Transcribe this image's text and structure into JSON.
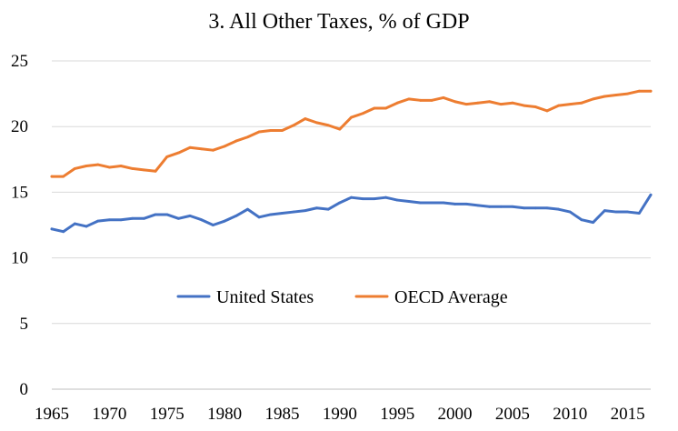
{
  "chart_data": {
    "type": "line",
    "title": "3. All Other Taxes, % of GDP",
    "xlabel": "",
    "ylabel": "",
    "x": [
      1965,
      1966,
      1967,
      1968,
      1969,
      1970,
      1971,
      1972,
      1973,
      1974,
      1975,
      1976,
      1977,
      1978,
      1979,
      1980,
      1981,
      1982,
      1983,
      1984,
      1985,
      1986,
      1987,
      1988,
      1989,
      1990,
      1991,
      1992,
      1993,
      1994,
      1995,
      1996,
      1997,
      1998,
      1999,
      2000,
      2001,
      2002,
      2003,
      2004,
      2005,
      2006,
      2007,
      2008,
      2009,
      2010,
      2011,
      2012,
      2013,
      2014,
      2015,
      2016,
      2017
    ],
    "xlim": [
      1965,
      2017
    ],
    "ylim": [
      0,
      25
    ],
    "y_ticks": [
      0,
      5,
      10,
      15,
      20,
      25
    ],
    "x_ticks": [
      1965,
      1970,
      1975,
      1980,
      1985,
      1990,
      1995,
      2000,
      2005,
      2010,
      2015
    ],
    "grid": true,
    "legend_position": "center",
    "series": [
      {
        "name": "United States",
        "color": "#4472c4",
        "values": [
          12.2,
          12.0,
          12.6,
          12.4,
          12.8,
          12.9,
          12.9,
          13.0,
          13.0,
          13.3,
          13.3,
          13.0,
          13.2,
          12.9,
          12.5,
          12.8,
          13.2,
          13.7,
          13.1,
          13.3,
          13.4,
          13.5,
          13.6,
          13.8,
          13.7,
          14.2,
          14.6,
          14.5,
          14.5,
          14.6,
          14.4,
          14.3,
          14.2,
          14.2,
          14.2,
          14.1,
          14.1,
          14.0,
          13.9,
          13.9,
          13.9,
          13.8,
          13.8,
          13.8,
          13.7,
          13.5,
          12.9,
          12.7,
          13.6,
          13.5,
          13.5,
          13.4,
          14.8
        ]
      },
      {
        "name": "OECD Average",
        "color": "#ed7d31",
        "values": [
          16.2,
          16.2,
          16.8,
          17.0,
          17.1,
          16.9,
          17.0,
          16.8,
          16.7,
          16.6,
          17.7,
          18.0,
          18.4,
          18.3,
          18.2,
          18.5,
          18.9,
          19.2,
          19.6,
          19.7,
          19.7,
          20.1,
          20.6,
          20.3,
          20.1,
          19.8,
          20.7,
          21.0,
          21.4,
          21.4,
          21.8,
          22.1,
          22.0,
          22.0,
          22.2,
          21.9,
          21.7,
          21.8,
          21.9,
          21.7,
          21.8,
          21.6,
          21.5,
          21.2,
          21.6,
          21.7,
          21.8,
          22.1,
          22.3,
          22.4,
          22.5,
          22.7,
          22.7
        ]
      }
    ]
  }
}
